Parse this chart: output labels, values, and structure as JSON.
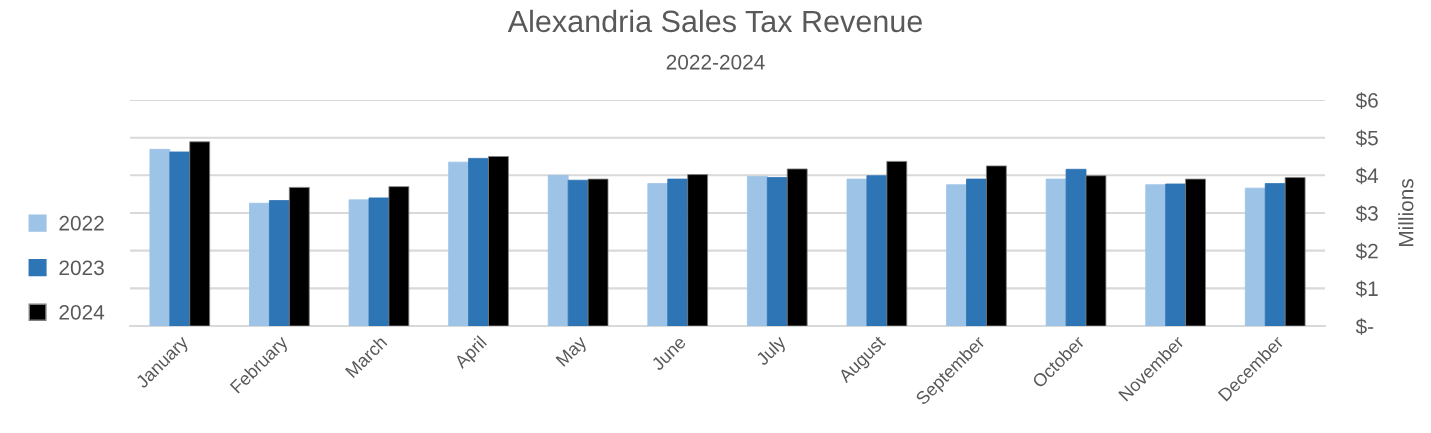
{
  "chart_data": {
    "type": "bar",
    "title": "Alexandria Sales Tax Revenue",
    "subtitle": "2022-2024",
    "ylabel": "Millions",
    "categories": [
      "January",
      "February",
      "March",
      "April",
      "May",
      "June",
      "July",
      "August",
      "September",
      "October",
      "November",
      "December"
    ],
    "series": [
      {
        "name": "2022",
        "color": "#9dc3e6",
        "values": [
          4.69,
          3.26,
          3.35,
          4.35,
          4.0,
          3.78,
          3.97,
          3.9,
          3.75,
          3.9,
          3.75,
          3.66
        ]
      },
      {
        "name": "2023",
        "color": "#2e75b6",
        "values": [
          4.62,
          3.33,
          3.4,
          4.45,
          3.87,
          3.9,
          3.94,
          3.99,
          3.9,
          4.16,
          3.77,
          3.78
        ]
      },
      {
        "name": "2024",
        "color": "#000000",
        "values": [
          4.89,
          3.68,
          3.7,
          4.5,
          3.9,
          4.02,
          4.17,
          4.37,
          4.25,
          3.99,
          3.9,
          3.94
        ]
      }
    ],
    "ylim": [
      0,
      6
    ],
    "yticks": [
      {
        "value": 0,
        "label": "$-"
      },
      {
        "value": 1,
        "label": "$1"
      },
      {
        "value": 2,
        "label": "$2"
      },
      {
        "value": 3,
        "label": "$3"
      },
      {
        "value": 4,
        "label": "$4"
      },
      {
        "value": 5,
        "label": "$5"
      },
      {
        "value": 6,
        "label": "$6"
      }
    ],
    "grid": "y",
    "legend": "left"
  }
}
